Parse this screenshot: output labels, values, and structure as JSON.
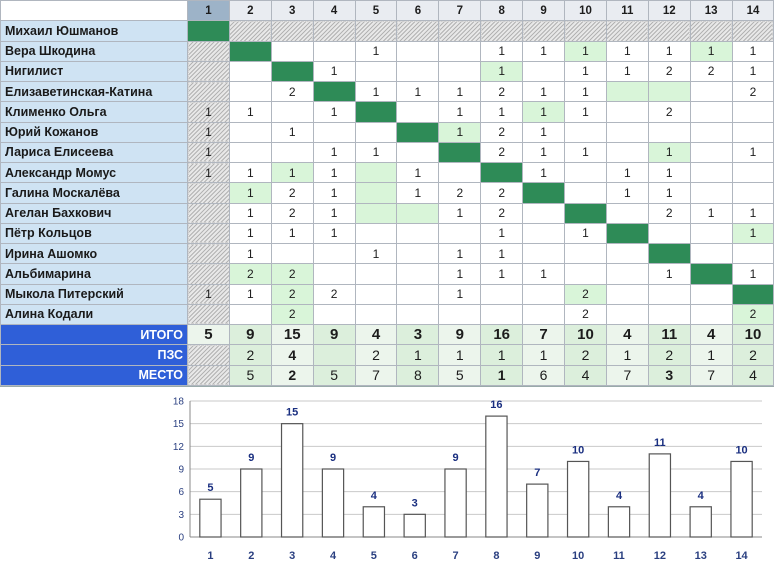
{
  "column_headers": [
    "1",
    "2",
    "3",
    "4",
    "5",
    "6",
    "7",
    "8",
    "9",
    "10",
    "11",
    "12",
    "13",
    "14"
  ],
  "players": [
    {
      "name": "Михаил Юшманов",
      "cells": [
        "",
        "",
        "",
        "",
        "",
        "",
        "",
        "",
        "",
        "",
        "",
        "",
        "",
        ""
      ]
    },
    {
      "name": "Вера Шкодина",
      "cells": [
        "",
        "",
        "",
        "",
        "1",
        "",
        "",
        "1",
        "1",
        "1",
        "1",
        "1",
        "1",
        "1"
      ]
    },
    {
      "name": "Нигилист",
      "cells": [
        "",
        "",
        "",
        "1",
        "",
        "",
        "",
        "1",
        "",
        "1",
        "1",
        "2",
        "2",
        "1"
      ]
    },
    {
      "name": "Елизаветинская-Катина",
      "cells": [
        "",
        "",
        "2",
        "",
        "1",
        "1",
        "1",
        "2",
        "1",
        "1",
        "",
        "",
        "",
        "2"
      ]
    },
    {
      "name": "Клименко Ольга",
      "cells": [
        "1",
        "1",
        "",
        "1",
        "",
        "",
        "1",
        "1",
        "1",
        "1",
        "",
        "2",
        "",
        ""
      ]
    },
    {
      "name": "Юрий Кожанов",
      "cells": [
        "1",
        "",
        "1",
        "",
        "",
        "",
        "1",
        "2",
        "1",
        "",
        "",
        "",
        "",
        ""
      ]
    },
    {
      "name": "Лариса Елисеева",
      "cells": [
        "1",
        "",
        "",
        "1",
        "1",
        "",
        "",
        "2",
        "1",
        "1",
        "",
        "1",
        "",
        "1"
      ]
    },
    {
      "name": "Александр Момус",
      "cells": [
        "1",
        "1",
        "1",
        "1",
        "",
        "1",
        "",
        "",
        "1",
        "",
        "1",
        "1",
        "",
        ""
      ]
    },
    {
      "name": "Галина Москалёва",
      "cells": [
        "",
        "1",
        "2",
        "1",
        "",
        "1",
        "2",
        "2",
        "",
        "",
        "1",
        "1",
        "",
        ""
      ]
    },
    {
      "name": "Агелан Бахкович",
      "cells": [
        "",
        "1",
        "2",
        "1",
        "",
        "",
        "1",
        "2",
        "",
        "",
        "",
        "2",
        "1",
        "1"
      ]
    },
    {
      "name": "Пётр Кольцов",
      "cells": [
        "",
        "1",
        "1",
        "1",
        "",
        "",
        "",
        "1",
        "",
        "1",
        "",
        "",
        "",
        "1"
      ]
    },
    {
      "name": "Ирина Ашомко",
      "cells": [
        "",
        "1",
        "",
        "",
        "1",
        "",
        "1",
        "1",
        "",
        "",
        "",
        "",
        "",
        ""
      ]
    },
    {
      "name": "Альбимарина",
      "cells": [
        "",
        "2",
        "2",
        "",
        "",
        "",
        "1",
        "1",
        "1",
        "",
        "",
        "1",
        "",
        "1"
      ]
    },
    {
      "name": "Мыкола Питерский",
      "cells": [
        "1",
        "1",
        "2",
        "2",
        "",
        "",
        "1",
        "",
        "",
        "2",
        "",
        "",
        "",
        ""
      ]
    },
    {
      "name": "Алина Кодали",
      "cells": [
        "",
        "",
        "2",
        "",
        "",
        "",
        "",
        "",
        "",
        "2",
        "",
        "",
        "",
        "2"
      ]
    }
  ],
  "summary": [
    {
      "label": "ИТОГО",
      "values": [
        "5",
        "9",
        "15",
        "9",
        "4",
        "3",
        "9",
        "16",
        "7",
        "10",
        "4",
        "11",
        "4",
        "10"
      ]
    },
    {
      "label": "ПЗС",
      "values": [
        "",
        "2",
        "4",
        "",
        "2",
        "1",
        "1",
        "1",
        "1",
        "2",
        "1",
        "2",
        "1",
        "2"
      ]
    },
    {
      "label": "МЕСТО",
      "values": [
        "",
        "5",
        "2",
        "5",
        "7",
        "8",
        "5",
        "1",
        "6",
        "4",
        "7",
        "3",
        "7",
        "4"
      ]
    }
  ],
  "colors": {
    "diagonal": "#2e8b57",
    "light_green": "#d9f5d9",
    "label_blue": "#2f5fd8",
    "name_blue": "#cfe3f3"
  },
  "chart_data": {
    "type": "bar",
    "categories": [
      "1",
      "2",
      "3",
      "4",
      "5",
      "6",
      "7",
      "8",
      "9",
      "10",
      "11",
      "12",
      "13",
      "14"
    ],
    "values": [
      5,
      9,
      15,
      9,
      4,
      3,
      9,
      16,
      7,
      10,
      4,
      11,
      4,
      10
    ],
    "ylim": [
      0,
      18
    ],
    "yticks": [
      0,
      3,
      6,
      9,
      12,
      15,
      18
    ],
    "grid": true,
    "legend": "none"
  }
}
